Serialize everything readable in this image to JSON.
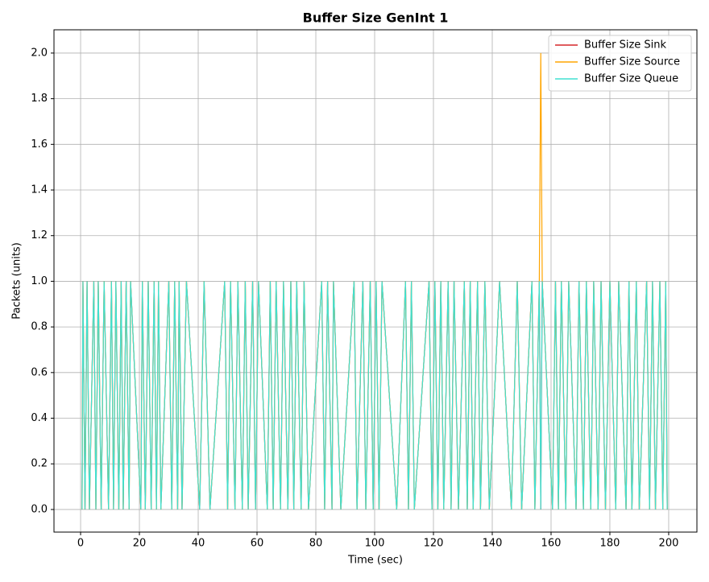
{
  "chart_data": {
    "type": "line",
    "title": "Buffer Size GenInt 1",
    "x_label": "Time (sec)",
    "y_label": "Packets (units)",
    "x": [
      0.5,
      0.8,
      1.5,
      2.2,
      3,
      4.5,
      5.2,
      6,
      7,
      8,
      9.5,
      10.5,
      11.2,
      12,
      13,
      13.8,
      14.5,
      15.5,
      16.5,
      17,
      20.5,
      21,
      22,
      23,
      24,
      25,
      25.8,
      26.5,
      27.3,
      30,
      31,
      32,
      33,
      33.5,
      34.5,
      36,
      40.5,
      42,
      44,
      49,
      50,
      51,
      52.5,
      53.5,
      55,
      56,
      57,
      58.5,
      59.5,
      60.5,
      63.5,
      64.5,
      65.5,
      66.5,
      68,
      69,
      70.5,
      71.5,
      72.5,
      73.5,
      75,
      76,
      77.5,
      82,
      83,
      84,
      85.5,
      86,
      88.5,
      93,
      94,
      96,
      97,
      98.5,
      99.5,
      100.5,
      101.5,
      102.5,
      107.5,
      110.5,
      111.5,
      112.5,
      113.5,
      118.5,
      119.5,
      120.5,
      121.5,
      122.5,
      123.5,
      125,
      126,
      127,
      128.5,
      130.5,
      131.5,
      132.5,
      133.5,
      135,
      136,
      137.5,
      139,
      142.5,
      146.5,
      148.5,
      150,
      153.5,
      154.5,
      156,
      156.5,
      157,
      160.5,
      161.5,
      162.5,
      163.5,
      165,
      166,
      168.5,
      169.5,
      171,
      172,
      173.5,
      174.5,
      176,
      177,
      178.5,
      180,
      182,
      183,
      185.5,
      186.5,
      187.5,
      189,
      190,
      192.5,
      193.5,
      194.5,
      195.5,
      197,
      198,
      199,
      199.5
    ],
    "series": [
      {
        "name": "Buffer Size Sink",
        "color": "#d62728",
        "values": [
          0,
          1,
          0,
          1,
          0,
          1,
          0,
          1,
          0,
          1,
          0,
          1,
          0,
          1,
          0,
          1,
          0,
          1,
          0,
          1,
          0,
          1,
          0,
          1,
          0,
          1,
          0,
          1,
          0,
          1,
          0,
          1,
          0,
          1,
          0,
          1,
          0,
          1,
          0,
          1,
          0,
          1,
          0,
          1,
          0,
          1,
          0,
          1,
          0,
          1,
          0,
          1,
          0,
          1,
          0,
          1,
          0,
          1,
          0,
          1,
          0,
          1,
          0,
          1,
          0,
          1,
          0,
          1,
          0,
          1,
          0,
          1,
          0,
          1,
          0,
          1,
          0,
          1,
          0,
          1,
          0,
          1,
          0,
          1,
          0,
          1,
          0,
          1,
          0,
          1,
          0,
          1,
          0,
          1,
          0,
          1,
          0,
          1,
          0,
          1,
          0,
          1,
          0,
          1,
          0,
          1,
          0,
          1,
          0,
          1,
          0,
          1,
          0,
          1,
          0,
          1,
          0,
          1,
          0,
          1,
          0,
          1,
          0,
          1,
          0,
          1,
          0,
          1,
          0,
          1,
          0,
          1,
          0,
          1,
          0,
          1,
          0,
          1,
          0,
          1,
          0
        ]
      },
      {
        "name": "Buffer Size Source",
        "color": "#ffa500",
        "values": [
          0,
          1,
          0,
          1,
          0,
          1,
          0,
          1,
          0,
          1,
          0,
          1,
          0,
          1,
          0,
          1,
          0,
          1,
          0,
          1,
          0,
          1,
          0,
          1,
          0,
          1,
          0,
          1,
          0,
          1,
          0,
          1,
          0,
          1,
          0,
          1,
          0,
          1,
          0,
          1,
          0,
          1,
          0,
          1,
          0,
          1,
          0,
          1,
          0,
          1,
          0,
          1,
          0,
          1,
          0,
          1,
          0,
          1,
          0,
          1,
          0,
          1,
          0,
          1,
          0,
          1,
          0,
          1,
          0,
          1,
          0,
          1,
          0,
          1,
          0,
          1,
          0,
          1,
          0,
          1,
          0,
          1,
          0,
          1,
          0,
          1,
          0,
          1,
          0,
          1,
          0,
          1,
          0,
          1,
          0,
          1,
          0,
          1,
          0,
          1,
          0,
          1,
          0,
          1,
          0,
          1,
          0,
          1,
          2,
          1,
          0,
          1,
          0,
          1,
          0,
          1,
          0,
          1,
          0,
          1,
          0,
          1,
          0,
          1,
          0,
          1,
          0,
          1,
          0,
          1,
          0,
          1,
          0,
          1,
          0,
          1,
          0,
          1,
          0,
          1,
          0
        ]
      },
      {
        "name": "Buffer Size Queue",
        "color": "#40e0d0",
        "values": [
          0,
          1,
          0,
          1,
          0,
          1,
          0,
          1,
          0,
          1,
          0,
          1,
          0,
          1,
          0,
          1,
          0,
          1,
          0,
          1,
          0,
          1,
          0,
          1,
          0,
          1,
          0,
          1,
          0,
          1,
          0,
          1,
          0,
          1,
          0,
          1,
          0,
          1,
          0,
          1,
          0,
          1,
          0,
          1,
          0,
          1,
          0,
          1,
          0,
          1,
          0,
          1,
          0,
          1,
          0,
          1,
          0,
          1,
          0,
          1,
          0,
          1,
          0,
          1,
          0,
          1,
          0,
          1,
          0,
          1,
          0,
          1,
          0,
          1,
          0,
          1,
          0,
          1,
          0,
          1,
          0,
          1,
          0,
          1,
          0,
          1,
          0,
          1,
          0,
          1,
          0,
          1,
          0,
          1,
          0,
          1,
          0,
          1,
          0,
          1,
          0,
          1,
          0,
          1,
          0,
          1,
          0,
          1,
          0,
          1,
          0,
          1,
          0,
          1,
          0,
          1,
          0,
          1,
          0,
          1,
          0,
          1,
          0,
          1,
          0,
          1,
          0,
          1,
          0,
          1,
          0,
          1,
          0,
          1,
          0,
          1,
          0,
          1,
          0,
          1,
          0
        ]
      }
    ],
    "xlim": [
      -9.05,
      209.6
    ],
    "ylim": [
      -0.099,
      2.102
    ],
    "xticks": [
      0,
      20,
      40,
      60,
      80,
      100,
      120,
      140,
      160,
      180,
      200
    ],
    "yticks": [
      {
        "value": 0,
        "label": "0.0"
      },
      0.2,
      0.4,
      0.6,
      0.8,
      {
        "value": 1,
        "label": "1.0"
      },
      1.2,
      1.4,
      1.6,
      1.8,
      {
        "value": 2,
        "label": "2.0"
      }
    ],
    "grid": true,
    "legend": "upper right"
  }
}
